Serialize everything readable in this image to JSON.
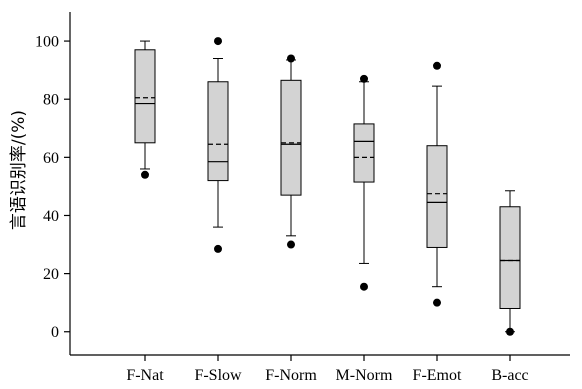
{
  "chart_data": {
    "type": "box",
    "title": "",
    "xlabel": "",
    "ylabel": "言语识别率/(%)",
    "ylim": [
      -8,
      110
    ],
    "yticks": [
      0,
      20,
      40,
      60,
      80,
      100
    ],
    "grid": false,
    "colors": {
      "box_fill": "#d3d3d3",
      "stroke": "#000000"
    },
    "categories": [
      "F-Nat",
      "F-Slow",
      "F-Norm",
      "M-Norm",
      "F-Emot",
      "B-acc"
    ],
    "boxes": [
      {
        "category": "F-Nat",
        "whisker_low": 56,
        "q1": 65,
        "median": 78.5,
        "mean": 80.5,
        "q3": 97,
        "whisker_high": 100,
        "outliers": [
          54
        ]
      },
      {
        "category": "F-Slow",
        "whisker_low": 36,
        "q1": 52,
        "median": 58.5,
        "mean": 64.5,
        "q3": 86,
        "whisker_high": 94,
        "outliers": [
          28.5,
          100
        ]
      },
      {
        "category": "F-Norm",
        "whisker_low": 33,
        "q1": 47,
        "median": 64.5,
        "mean": 65,
        "q3": 86.5,
        "whisker_high": 93.5,
        "outliers": [
          30,
          94
        ]
      },
      {
        "category": "M-Norm",
        "whisker_low": 23.5,
        "q1": 51.5,
        "median": 65.5,
        "mean": 60,
        "q3": 71.5,
        "whisker_high": 86,
        "outliers": [
          15.5,
          87
        ]
      },
      {
        "category": "F-Emot",
        "whisker_low": 15.5,
        "q1": 29,
        "median": 44.5,
        "mean": 47.5,
        "q3": 64,
        "whisker_high": 84.5,
        "outliers": [
          10,
          91.5
        ]
      },
      {
        "category": "B-acc",
        "whisker_low": 0,
        "q1": 8,
        "median": 24.5,
        "mean": 24.5,
        "q3": 43,
        "whisker_high": 48.5,
        "outliers": [
          0
        ]
      }
    ]
  }
}
